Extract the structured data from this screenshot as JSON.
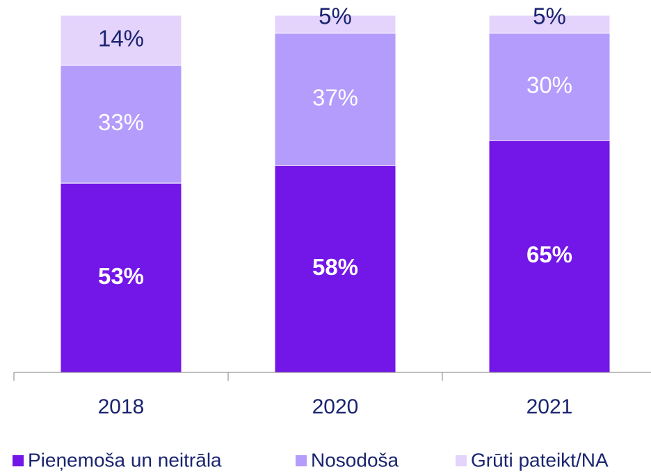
{
  "chart_data": {
    "type": "stacked_bar",
    "categories": [
      "2018",
      "2020",
      "2021"
    ],
    "series": [
      {
        "name": "Pieņemoša un neitrāla",
        "color": "#7316e8",
        "values": [
          53,
          58,
          65
        ],
        "value_labels": [
          "53%",
          "58%",
          "65%"
        ]
      },
      {
        "name": "Nosodoša",
        "color": "#b49cfc",
        "values": [
          33,
          37,
          30
        ],
        "value_labels": [
          "33%",
          "37%",
          "30%"
        ]
      },
      {
        "name": "Grūti pateikt/NA",
        "color": "#e4d4fc",
        "values": [
          14,
          5,
          5
        ],
        "value_labels": [
          "14%",
          "5%",
          "5%"
        ]
      }
    ],
    "ylim": [
      0,
      100
    ],
    "legend": "bottom"
  }
}
